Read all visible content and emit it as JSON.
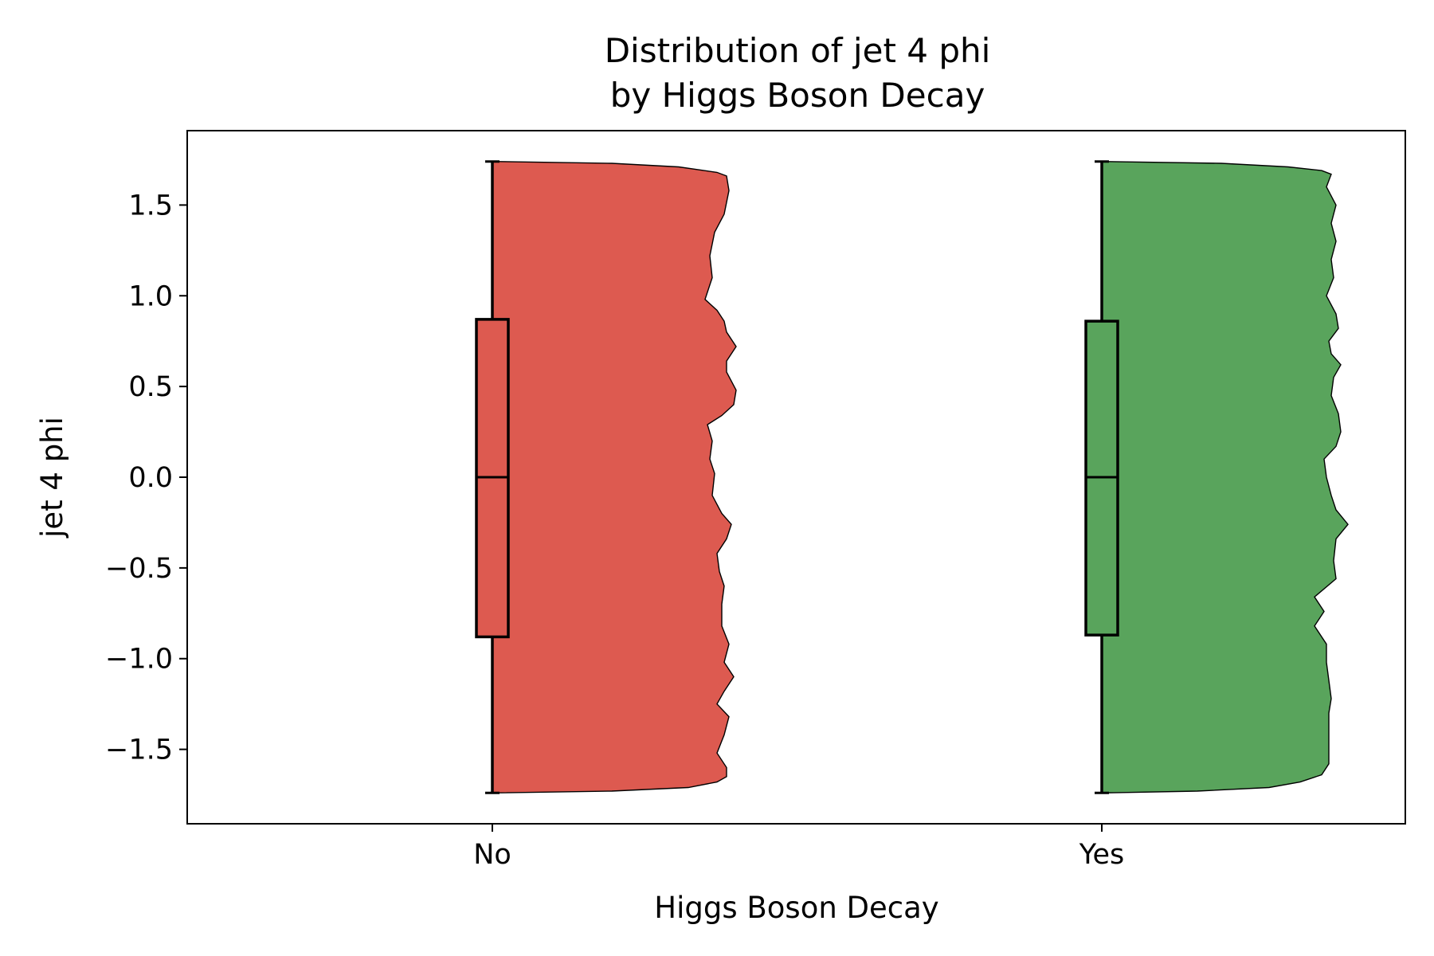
{
  "chart_data": {
    "type": "violin",
    "title_lines": [
      "Distribution of jet 4 phi",
      "by Higgs Boson Decay"
    ],
    "xlabel": "Higgs Boson Decay",
    "ylabel": "jet 4 phi",
    "categories": [
      "No",
      "Yes"
    ],
    "ylim": [
      -1.91,
      1.91
    ],
    "yticks": [
      1.5,
      1.0,
      0.5,
      0.0,
      -0.5,
      -1.0,
      -1.5
    ],
    "ytick_labels": [
      "1.5",
      "1.0",
      "0.5",
      "0.0",
      "−0.5",
      "−1.0",
      "−1.5"
    ],
    "grid": false,
    "series": [
      {
        "category": "No",
        "color": "#dd5a50",
        "box": {
          "min": -1.74,
          "q1": -0.88,
          "median": 0.0,
          "q3": 0.87,
          "max": 1.74
        },
        "density": [
          [
            1.74,
            0.0
          ],
          [
            1.73,
            0.5
          ],
          [
            1.71,
            0.78
          ],
          [
            1.68,
            0.94
          ],
          [
            1.66,
            0.98
          ],
          [
            1.58,
            0.99
          ],
          [
            1.45,
            0.97
          ],
          [
            1.35,
            0.93
          ],
          [
            1.22,
            0.91
          ],
          [
            1.1,
            0.92
          ],
          [
            0.98,
            0.89
          ],
          [
            0.92,
            0.94
          ],
          [
            0.86,
            0.97
          ],
          [
            0.8,
            0.98
          ],
          [
            0.72,
            1.02
          ],
          [
            0.64,
            0.98
          ],
          [
            0.58,
            0.98
          ],
          [
            0.48,
            1.02
          ],
          [
            0.4,
            1.01
          ],
          [
            0.34,
            0.96
          ],
          [
            0.29,
            0.9
          ],
          [
            0.2,
            0.92
          ],
          [
            0.1,
            0.91
          ],
          [
            0.02,
            0.93
          ],
          [
            -0.1,
            0.92
          ],
          [
            -0.2,
            0.96
          ],
          [
            -0.26,
            1.0
          ],
          [
            -0.34,
            0.98
          ],
          [
            -0.42,
            0.94
          ],
          [
            -0.52,
            0.95
          ],
          [
            -0.6,
            0.97
          ],
          [
            -0.7,
            0.96
          ],
          [
            -0.82,
            0.96
          ],
          [
            -0.92,
            0.99
          ],
          [
            -1.02,
            0.97
          ],
          [
            -1.1,
            1.01
          ],
          [
            -1.18,
            0.97
          ],
          [
            -1.25,
            0.94
          ],
          [
            -1.32,
            0.99
          ],
          [
            -1.42,
            0.97
          ],
          [
            -1.52,
            0.94
          ],
          [
            -1.6,
            0.98
          ],
          [
            -1.65,
            0.98
          ],
          [
            -1.68,
            0.94
          ],
          [
            -1.71,
            0.82
          ],
          [
            -1.73,
            0.5
          ],
          [
            -1.74,
            0.0
          ]
        ]
      },
      {
        "category": "Yes",
        "color": "#59a45c",
        "box": {
          "min": -1.74,
          "q1": -0.87,
          "median": 0.0,
          "q3": 0.86,
          "max": 1.74
        },
        "density": [
          [
            1.74,
            0.0
          ],
          [
            1.73,
            0.5
          ],
          [
            1.71,
            0.78
          ],
          [
            1.69,
            0.92
          ],
          [
            1.67,
            0.96
          ],
          [
            1.6,
            0.94
          ],
          [
            1.5,
            0.98
          ],
          [
            1.4,
            0.96
          ],
          [
            1.3,
            0.98
          ],
          [
            1.2,
            0.96
          ],
          [
            1.1,
            0.97
          ],
          [
            1.0,
            0.94
          ],
          [
            0.9,
            0.98
          ],
          [
            0.82,
            0.99
          ],
          [
            0.75,
            0.95
          ],
          [
            0.68,
            0.96
          ],
          [
            0.62,
            1.0
          ],
          [
            0.55,
            0.97
          ],
          [
            0.45,
            0.96
          ],
          [
            0.35,
            0.99
          ],
          [
            0.25,
            1.0
          ],
          [
            0.17,
            0.98
          ],
          [
            0.1,
            0.93
          ],
          [
            0.0,
            0.94
          ],
          [
            -0.1,
            0.96
          ],
          [
            -0.18,
            0.98
          ],
          [
            -0.26,
            1.03
          ],
          [
            -0.34,
            0.98
          ],
          [
            -0.46,
            0.97
          ],
          [
            -0.56,
            0.98
          ],
          [
            -0.66,
            0.89
          ],
          [
            -0.74,
            0.93
          ],
          [
            -0.82,
            0.89
          ],
          [
            -0.92,
            0.94
          ],
          [
            -1.02,
            0.94
          ],
          [
            -1.12,
            0.95
          ],
          [
            -1.22,
            0.96
          ],
          [
            -1.3,
            0.95
          ],
          [
            -1.4,
            0.95
          ],
          [
            -1.5,
            0.95
          ],
          [
            -1.58,
            0.95
          ],
          [
            -1.64,
            0.92
          ],
          [
            -1.68,
            0.83
          ],
          [
            -1.71,
            0.7
          ],
          [
            -1.73,
            0.4
          ],
          [
            -1.74,
            0.0
          ]
        ]
      }
    ]
  }
}
